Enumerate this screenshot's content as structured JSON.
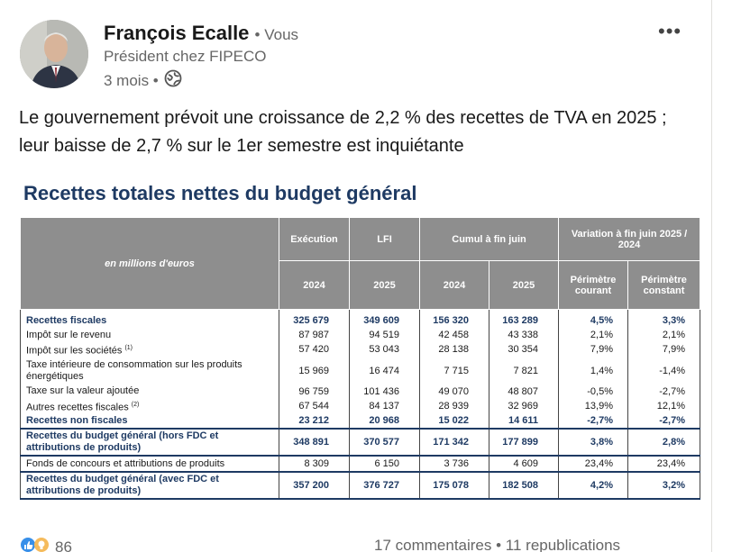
{
  "author": {
    "name": "François Ecalle",
    "badge": "• Vous",
    "headline": "Président chez FIPECO",
    "time": "3 mois •",
    "visibility_icon": "globe-icon"
  },
  "menu_icon": "more-horizontal-icon",
  "post": {
    "text": "Le gouvernement prévoit une croissance de 2,2 % des recettes de TVA en 2025 ; leur baisse de 2,7 % sur le 1er semestre est inquiétante"
  },
  "figure": {
    "title": "Recettes totales nettes du budget général",
    "units": "en millions d'euros",
    "header": {
      "execution": "Exécution",
      "lfi": "LFI",
      "cumul": "Cumul à fin juin",
      "variation": "Variation à fin juin 2025 / 2024",
      "y1": "2024",
      "y2": "2025",
      "y3": "2024",
      "y4": "2025",
      "perim_courant": "Périmètre courant",
      "perim_constant": "Périmètre constant"
    },
    "rows": [
      {
        "label": "Recettes fiscales",
        "c1": "325 679",
        "c2": "349 609",
        "c3": "156 320",
        "c4": "163 289",
        "c5": "4,5%",
        "c6": "3,3%"
      },
      {
        "label": "Impôt sur le revenu",
        "c1": "87 987",
        "c2": "94 519",
        "c3": "42 458",
        "c4": "43 338",
        "c5": "2,1%",
        "c6": "2,1%"
      },
      {
        "label": "Impôt sur les sociétés",
        "sup": "(1)",
        "c1": "57 420",
        "c2": "53 043",
        "c3": "28 138",
        "c4": "30 354",
        "c5": "7,9%",
        "c6": "7,9%"
      },
      {
        "label": "Taxe intérieure de consommation sur les produits énergétiques",
        "c1": "15 969",
        "c2": "16 474",
        "c3": "7 715",
        "c4": "7 821",
        "c5": "1,4%",
        "c6": "-1,4%"
      },
      {
        "label": "Taxe sur la valeur ajoutée",
        "c1": "96 759",
        "c2": "101 436",
        "c3": "49 070",
        "c4": "48 807",
        "c5": "-0,5%",
        "c6": "-2,7%"
      },
      {
        "label": "Autres recettes fiscales",
        "sup": "(2)",
        "c1": "67 544",
        "c2": "84 137",
        "c3": "28 939",
        "c4": "32 969",
        "c5": "13,9%",
        "c6": "12,1%"
      },
      {
        "label": "Recettes non fiscales",
        "c1": "23 212",
        "c2": "20 968",
        "c3": "15 022",
        "c4": "14 611",
        "c5": "-2,7%",
        "c6": "-2,7%"
      },
      {
        "label": "Recettes du budget général (hors FDC et attributions de produits)",
        "c1": "348 891",
        "c2": "370 577",
        "c3": "171 342",
        "c4": "177 899",
        "c5": "3,8%",
        "c6": "2,8%"
      },
      {
        "label": "Fonds de concours et attributions de produits",
        "c1": "8 309",
        "c2": "6 150",
        "c3": "3 736",
        "c4": "4 609",
        "c5": "23,4%",
        "c6": "23,4%"
      },
      {
        "label": "Recettes du budget général (avec FDC et attributions de produits)",
        "c1": "357 200",
        "c2": "376 727",
        "c3": "175 078",
        "c4": "182 508",
        "c5": "4,2%",
        "c6": "3,2%"
      }
    ]
  },
  "social": {
    "reaction_count": "86",
    "comments": "17 commentaires • 11 republications"
  },
  "colors": {
    "title_blue": "#1e3a63",
    "header_gray": "#8e8e8e",
    "meta_gray": "#666666"
  }
}
